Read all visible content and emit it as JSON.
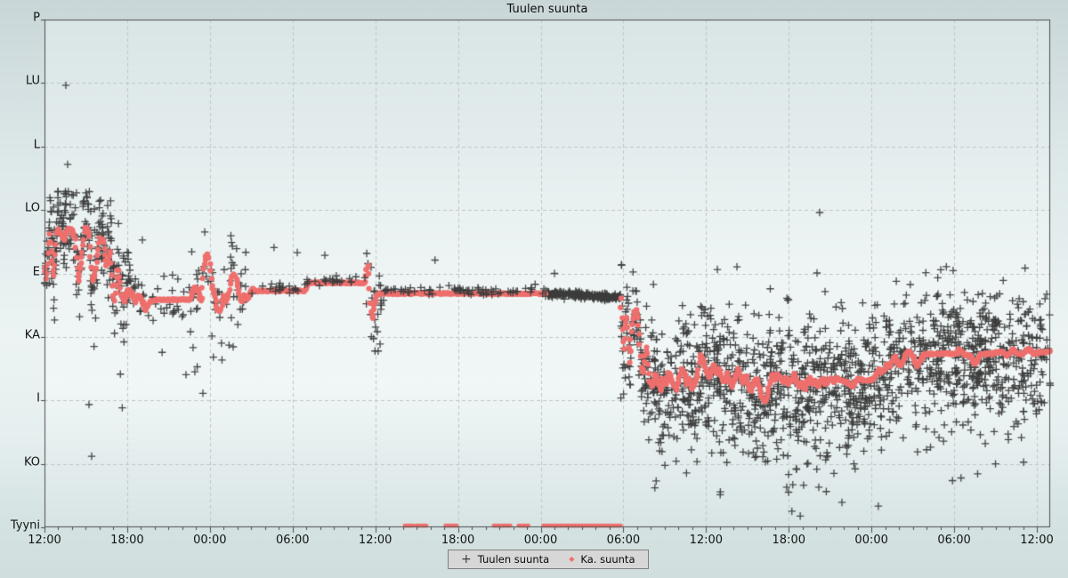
{
  "page": {
    "title": "Tuulen suunta"
  },
  "chart_data": {
    "type": "scatter",
    "title": "Tuulen suunta",
    "x_axis": {
      "tick_labels": [
        "12:00",
        "18:00",
        "00:00",
        "06:00",
        "12:00",
        "18:00",
        "00:00",
        "06:00",
        "12:00",
        "18:00",
        "00:00",
        "06:00",
        "12:00"
      ],
      "major_tick_hours": 6,
      "minor_tick_hours": 1,
      "span_hours": 72.97,
      "grid": true
    },
    "y_axis": {
      "unit": "wind-direction-degrees",
      "range_deg": [
        0,
        360
      ],
      "labels": [
        {
          "label": "P",
          "deg": 360
        },
        {
          "label": "LU",
          "deg": 315
        },
        {
          "label": "L",
          "deg": 270
        },
        {
          "label": "LO",
          "deg": 225
        },
        {
          "label": "E",
          "deg": 180
        },
        {
          "label": "KA",
          "deg": 135
        },
        {
          "label": "I",
          "deg": 90
        },
        {
          "label": "KO",
          "deg": 45
        },
        {
          "label": "Tyyni",
          "deg": 0
        }
      ],
      "grid": true
    },
    "legend": [
      {
        "label": "Tuulen suunta",
        "marker": "plus",
        "color": "#3c3c3c"
      },
      {
        "label": "Ka. suunta",
        "marker": "diamond",
        "color": "#ee6f6d"
      }
    ],
    "colors": {
      "avg": "#ee6f6d",
      "scatter": "#3c3c3c",
      "grid": "#c0c6c6",
      "axis": "#4d4d4d",
      "plot_bg_top": "#d9e5e6",
      "plot_bg_mid": "#eff5f5",
      "plot_bg_bottom": "#d8e4e4",
      "legend_bg": "#d7d7d7",
      "legend_border": "#7e7e7e",
      "text": "#111111"
    },
    "series": {
      "avg_path_segments": [
        [
          [
            0,
            184.7
          ],
          [
            0.13,
            175.3
          ],
          [
            0.39,
            208.7
          ],
          [
            0.65,
            177.2
          ],
          [
            0.9,
            211.2
          ],
          [
            1.16,
            208.7
          ],
          [
            1.42,
            203.7
          ],
          [
            1.68,
            212.5
          ],
          [
            1.94,
            211.2
          ],
          [
            2.2,
            204.9
          ],
          [
            2.45,
            173.4
          ],
          [
            2.71,
            192.3
          ],
          [
            2.97,
            213.1
          ],
          [
            3.23,
            208.7
          ],
          [
            3.49,
            173.4
          ],
          [
            3.75,
            184.7
          ],
          [
            4,
            204.9
          ],
          [
            4.26,
            203.7
          ],
          [
            4.52,
            184.7
          ],
          [
            4.78,
            196.1
          ],
          [
            5.04,
            158.3
          ],
          [
            5.3,
            184.7
          ],
          [
            5.55,
            165.8
          ],
          [
            5.81,
            159.5
          ],
          [
            6.07,
            168.3
          ],
          [
            6.33,
            165.8
          ],
          [
            6.59,
            159.5
          ],
          [
            6.84,
            164.6
          ],
          [
            7.1,
            160.8
          ],
          [
            7.36,
            153.2
          ],
          [
            7.62,
            159.5
          ],
          [
            7.88,
            160.8
          ],
          [
            8.14,
            161.4
          ],
          [
            10.59,
            161.4
          ],
          [
            10.85,
            170.9
          ],
          [
            11.11,
            168.3
          ],
          [
            11.36,
            159.5
          ],
          [
            11.56,
            184.7
          ],
          [
            11.75,
            194.2
          ],
          [
            11.95,
            191
          ],
          [
            12.14,
            172.1
          ],
          [
            12.33,
            165.8
          ],
          [
            12.53,
            154.5
          ],
          [
            12.79,
            153.2
          ],
          [
            12.98,
            164.6
          ],
          [
            13.17,
            159.5
          ],
          [
            13.37,
            165.8
          ],
          [
            13.56,
            177.2
          ],
          [
            13.75,
            179.7
          ],
          [
            13.95,
            175.3
          ],
          [
            14.14,
            165.8
          ],
          [
            14.33,
            159.5
          ],
          [
            14.53,
            164.6
          ],
          [
            14.72,
            161.4
          ],
          [
            14.92,
            165.8
          ],
          [
            15.11,
            169
          ],
          [
            15.3,
            167.1
          ],
          [
            15.56,
            167.7
          ],
          [
            18.92,
            167.7
          ],
          [
            19.11,
            173.4
          ],
          [
            23.25,
            173.4
          ],
          [
            23.38,
            182.8
          ],
          [
            23.51,
            186.6
          ],
          [
            23.64,
            159.5
          ],
          [
            23.77,
            146.9
          ],
          [
            23.9,
            156.4
          ],
          [
            24.09,
            163.9
          ],
          [
            24.35,
            165.8
          ],
          [
            36.42,
            165.8
          ]
        ],
        [
          [
            41.78,
            162.7
          ],
          [
            41.91,
            145.6
          ],
          [
            42.04,
            124.8
          ],
          [
            42.17,
            141.9
          ],
          [
            42.3,
            150.1
          ],
          [
            42.43,
            115.4
          ],
          [
            42.56,
            134.3
          ],
          [
            42.69,
            146.9
          ],
          [
            42.81,
            152
          ],
          [
            42.94,
            154.5
          ],
          [
            43.07,
            146.9
          ],
          [
            43.2,
            131.1
          ],
          [
            43.33,
            112.2
          ],
          [
            43.46,
            109.1
          ],
          [
            43.59,
            121.7
          ],
          [
            43.72,
            128
          ],
          [
            43.91,
            104
          ],
          [
            44.11,
            99.6
          ],
          [
            44.3,
            109.1
          ],
          [
            44.49,
            104
          ],
          [
            44.69,
            96.5
          ],
          [
            44.88,
            105.9
          ],
          [
            45.08,
            101.5
          ],
          [
            45.27,
            110.3
          ],
          [
            45.46,
            105.9
          ],
          [
            45.66,
            99.6
          ],
          [
            45.85,
            97.7
          ],
          [
            46.04,
            105.9
          ],
          [
            46.24,
            112.2
          ],
          [
            46.43,
            109.1
          ],
          [
            46.62,
            101.5
          ],
          [
            46.82,
            105.9
          ],
          [
            47.01,
            98.4
          ],
          [
            47.2,
            102.8
          ],
          [
            47.4,
            109.1
          ],
          [
            47.59,
            122.9
          ],
          [
            47.78,
            118.5
          ],
          [
            47.98,
            112.2
          ],
          [
            48.17,
            105.9
          ],
          [
            48.37,
            110.3
          ],
          [
            48.56,
            115.4
          ],
          [
            48.75,
            109.1
          ],
          [
            48.95,
            112.2
          ],
          [
            49.14,
            105.9
          ],
          [
            49.33,
            102.8
          ],
          [
            49.53,
            110.3
          ],
          [
            49.72,
            104
          ],
          [
            49.91,
            99.6
          ],
          [
            50.11,
            105.9
          ],
          [
            50.3,
            112.2
          ],
          [
            50.5,
            105.9
          ],
          [
            50.69,
            102.8
          ],
          [
            50.88,
            107.8
          ],
          [
            51.08,
            101.5
          ],
          [
            51.27,
            96.5
          ],
          [
            51.46,
            102.8
          ],
          [
            51.66,
            105.9
          ],
          [
            51.85,
            99.6
          ],
          [
            52.04,
            93.3
          ],
          [
            52.24,
            88.9
          ],
          [
            52.43,
            91.4
          ],
          [
            52.63,
            102.8
          ],
          [
            52.82,
            109.1
          ],
          [
            53.01,
            104
          ],
          [
            53.21,
            109.1
          ],
          [
            53.4,
            105.9
          ],
          [
            53.59,
            102.8
          ],
          [
            53.79,
            105.9
          ],
          [
            53.98,
            101.5
          ],
          [
            54.17,
            104
          ],
          [
            54.37,
            109.1
          ],
          [
            54.56,
            104
          ],
          [
            54.76,
            99.6
          ],
          [
            54.95,
            102.8
          ],
          [
            55.14,
            97.7
          ],
          [
            55.34,
            102.8
          ],
          [
            55.53,
            105.9
          ],
          [
            55.72,
            101.5
          ],
          [
            55.92,
            104
          ],
          [
            56.11,
            99.6
          ],
          [
            56.31,
            102.8
          ],
          [
            56.5,
            105.9
          ],
          [
            56.69,
            101.5
          ],
          [
            56.89,
            104
          ],
          [
            57.08,
            105.9
          ],
          [
            57.27,
            102.8
          ],
          [
            57.47,
            105.9
          ],
          [
            57.86,
            104
          ],
          [
            58.24,
            102.8
          ],
          [
            58.63,
            99.6
          ],
          [
            59.02,
            105.9
          ],
          [
            59.41,
            104
          ],
          [
            59.79,
            104
          ],
          [
            60.18,
            105.3
          ],
          [
            60.37,
            109.1
          ],
          [
            60.57,
            112.2
          ],
          [
            60.76,
            109.1
          ],
          [
            60.95,
            112.2
          ],
          [
            61.15,
            115.4
          ],
          [
            61.34,
            114.1
          ],
          [
            61.53,
            118.5
          ],
          [
            61.73,
            121.7
          ],
          [
            61.92,
            116.6
          ],
          [
            62.12,
            114.1
          ],
          [
            62.31,
            118.5
          ],
          [
            62.5,
            122.9
          ],
          [
            62.7,
            124.8
          ],
          [
            62.89,
            122.9
          ],
          [
            63.08,
            119.8
          ],
          [
            63.28,
            114.1
          ],
          [
            63.47,
            116.6
          ],
          [
            63.66,
            120.4
          ],
          [
            63.86,
            122.9
          ],
          [
            64.25,
            122.9
          ],
          [
            64.63,
            122.9
          ],
          [
            65.02,
            122.9
          ],
          [
            65.41,
            123.6
          ],
          [
            65.8,
            122.9
          ],
          [
            66.18,
            122.9
          ],
          [
            66.38,
            126.1
          ],
          [
            66.76,
            122.3
          ],
          [
            67.15,
            121.7
          ],
          [
            67.35,
            118.5
          ],
          [
            67.54,
            115.4
          ],
          [
            67.73,
            119.8
          ],
          [
            67.93,
            122.9
          ],
          [
            68.31,
            122.9
          ],
          [
            68.7,
            122.9
          ],
          [
            69.09,
            124.2
          ],
          [
            69.48,
            124.8
          ],
          [
            69.86,
            121.7
          ],
          [
            70.25,
            126.1
          ],
          [
            70.64,
            122.9
          ],
          [
            71.02,
            122.9
          ],
          [
            71.41,
            126.7
          ],
          [
            71.8,
            122.9
          ],
          [
            72.19,
            124.2
          ],
          [
            72.57,
            124.2
          ],
          [
            72.97,
            124.8
          ]
        ]
      ],
      "calm_segments": [
        [
          26.15,
          26.8
        ],
        [
          27.0,
          27.8
        ],
        [
          29.1,
          30.0
        ],
        [
          32.6,
          33.9
        ],
        [
          34.4,
          35.2
        ],
        [
          36.2,
          41.84
        ]
      ],
      "scatter_segments": [
        {
          "h0": 0,
          "h1": 6.2,
          "sigma": 16,
          "density": 46,
          "bias": 4,
          "outlier_frac": 0.05,
          "clamp": [
            60,
            238
          ]
        },
        {
          "h0": 6.2,
          "h1": 11.0,
          "sigma": 10,
          "density": 10,
          "bias": 2,
          "outlier_frac": 0.05,
          "clamp": [
            90,
            232
          ]
        },
        {
          "h0": 11.0,
          "h1": 14.8,
          "sigma": 16,
          "density": 16,
          "bias": 0,
          "outlier_frac": 0.07,
          "clamp": [
            95,
            228
          ]
        },
        {
          "h0": 14.8,
          "h1": 23.3,
          "sigma": 1.6,
          "density": 5,
          "bias": 2,
          "outlier_frac": 0.01,
          "clamp": [
            125,
            200
          ],
          "on_top": true
        },
        {
          "h0": 23.3,
          "h1": 24.6,
          "sigma": 15,
          "density": 16,
          "bias": 0,
          "outlier_frac": 0.05,
          "clamp": [
            125,
            200
          ]
        },
        {
          "h0": 24.6,
          "h1": 36.5,
          "sigma": 1.6,
          "density": 6,
          "bias": 2,
          "outlier_frac": 0.004,
          "clamp": [
            140,
            190
          ],
          "on_top": true
        },
        {
          "h0": 36.5,
          "h1": 41.8,
          "sigma": 1.1,
          "density": 44,
          "bias": 0,
          "outlier_frac": 0.002,
          "clamp": [
            150,
            180
          ]
        },
        {
          "h0": 41.8,
          "h1": 43.6,
          "sigma": 17,
          "density": 44,
          "bias": 0,
          "outlier_frac": 0.04,
          "clamp": [
            60,
            186
          ]
        },
        {
          "h0": 43.6,
          "h1": 72.97,
          "sigma": 24,
          "density": 56,
          "bias": -3,
          "outlier_frac": 0.035,
          "clamp": [
            8,
            186
          ]
        }
      ],
      "scatter_outliers": [
        [
          1.55,
          313.4
        ],
        [
          1.68,
          257.3
        ],
        [
          1.42,
          236.5
        ],
        [
          2.32,
          237.1
        ],
        [
          0.65,
          227.0
        ],
        [
          1.87,
          228.9
        ],
        [
          3.62,
          225.7
        ],
        [
          4.58,
          228.2
        ],
        [
          4.84,
          218.8
        ],
        [
          7.1,
          203.7
        ],
        [
          3.23,
          87.0
        ],
        [
          3.42,
          50.4
        ],
        [
          10.59,
          138.7
        ],
        [
          10.78,
          127.4
        ],
        [
          10.91,
          110.3
        ],
        [
          12.72,
          148.8
        ],
        [
          13.69,
          128.0
        ],
        [
          18.34,
          194.8
        ],
        [
          20.34,
          192.9
        ],
        [
          23.38,
          194.2
        ],
        [
          23.9,
          157.6
        ],
        [
          24.02,
          141.9
        ],
        [
          24.15,
          138.7
        ],
        [
          24.35,
          129.9
        ],
        [
          56.24,
          223.2
        ],
        [
          56.05,
          180.3
        ],
        [
          53.85,
          28.4
        ],
        [
          56.18,
          28.4
        ],
        [
          57.86,
          17.7
        ],
        [
          51.08,
          52.3
        ],
        [
          52.5,
          64.9
        ],
        [
          47.98,
          74.4
        ],
        [
          44.56,
          83.9
        ],
        [
          48.82,
          182.8
        ],
        [
          50.24,
          184.7
        ],
        [
          60.5,
          15.0
        ],
        [
          64.0,
          55.0
        ],
        [
          66.5,
          35.0
        ],
        [
          69.0,
          45.0
        ]
      ]
    }
  }
}
